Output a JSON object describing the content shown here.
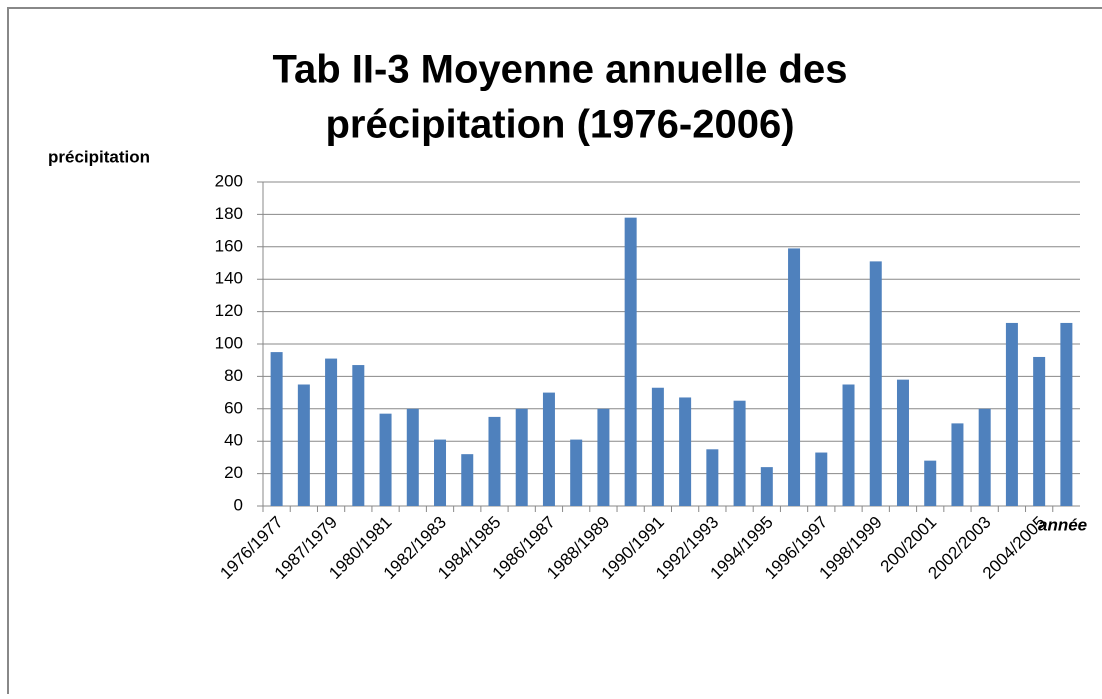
{
  "chart_data": {
    "type": "bar",
    "title": "Tab II-3 Moyenne annuelle des précipitation (1976-2006)",
    "y_label": "précipitation",
    "x_label": "année",
    "categories": [
      "1976/1977",
      null,
      "1987/1979",
      null,
      "1980/1981",
      null,
      "1982/1983",
      null,
      "1984/1985",
      null,
      "1986/1987",
      null,
      "1988/1989",
      null,
      "1990/1991",
      null,
      "1992/1993",
      null,
      "1994/1995",
      null,
      "1996/1997",
      null,
      "1998/1999",
      null,
      "200/2001",
      null,
      "2002/2003",
      null,
      "2004/2005",
      null
    ],
    "values": [
      95,
      75,
      91,
      87,
      57,
      60,
      41,
      32,
      55,
      60,
      70,
      41,
      60,
      178,
      73,
      67,
      35,
      65,
      24,
      159,
      33,
      75,
      151,
      78,
      28,
      51,
      60,
      113,
      92,
      113
    ],
    "color": "#4f81bd",
    "ylim": [
      0,
      200
    ],
    "yticks": [
      0,
      20,
      40,
      60,
      80,
      100,
      120,
      140,
      160,
      180,
      200
    ],
    "grid": true
  }
}
